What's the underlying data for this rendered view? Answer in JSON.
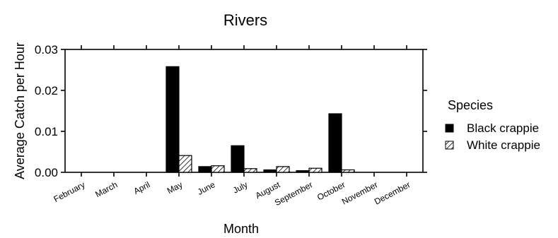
{
  "chart_data": {
    "type": "bar",
    "title": "Rivers",
    "xlabel": "Month",
    "ylabel": "Average Catch per Hour",
    "ylim": [
      0,
      0.03
    ],
    "yticks": [
      "0.00",
      "0.01",
      "0.02",
      "0.03"
    ],
    "categories": [
      "February",
      "March",
      "April",
      "May",
      "June",
      "July",
      "August",
      "September",
      "October",
      "November",
      "December"
    ],
    "legend": {
      "title": "Species",
      "placement": "right"
    },
    "grid": false,
    "series": [
      {
        "name": "Black crappie",
        "pattern": "solid",
        "color": "#000000",
        "values": [
          0,
          0,
          0,
          0.0258,
          0.0014,
          0.0065,
          0.0006,
          0.0004,
          0.0143,
          0,
          0
        ]
      },
      {
        "name": "White crappie",
        "pattern": "hatched",
        "color": "#000000",
        "values": [
          0,
          0,
          0,
          0.0041,
          0.0016,
          0.0009,
          0.0014,
          0.001,
          0.0006,
          0,
          0
        ]
      }
    ]
  }
}
